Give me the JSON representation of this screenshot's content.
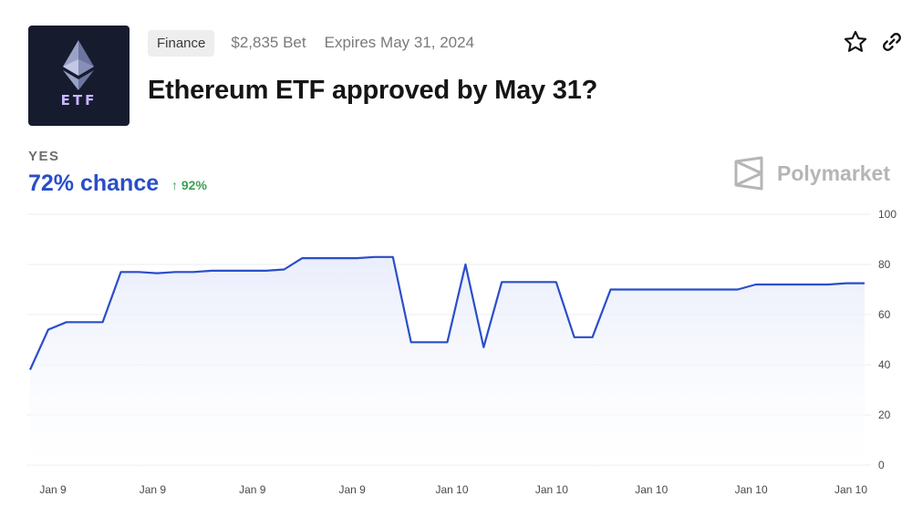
{
  "market": {
    "category": "Finance",
    "volume": "$2,835 Bet",
    "expires": "Expires May 31, 2024",
    "title": "Ethereum ETF approved by May 31?",
    "thumb_label": "ETF"
  },
  "outcome": {
    "label": "YES",
    "chance": "72% chance",
    "change": "↑ 92%"
  },
  "brand": {
    "name": "Polymarket"
  },
  "icons": {
    "favorite": "star-icon",
    "share": "link-icon",
    "brand": "polymarket-logo-icon",
    "thumb": "ethereum-diamond-icon"
  },
  "colors": {
    "line": "#2a4ec9",
    "fill_top": "#e8ecfb",
    "positive": "#3aa155"
  },
  "chart_data": {
    "type": "line",
    "title": "",
    "xlabel": "",
    "ylabel": "",
    "ylim": [
      0,
      100
    ],
    "yticks": [
      "100",
      "80",
      "60",
      "40",
      "20",
      "0"
    ],
    "xtick_labels": [
      "Jan 9",
      "Jan 9",
      "Jan 9",
      "Jan 9",
      "Jan 10",
      "Jan 10",
      "Jan 10",
      "Jan 10",
      "Jan 10"
    ],
    "grid": true,
    "series": [
      {
        "values": [
          38,
          54,
          57,
          57,
          57,
          77,
          77,
          76.5,
          77,
          77,
          77.5,
          77.5,
          77.5,
          77.5,
          78,
          82.5,
          82.5,
          82.5,
          82.5,
          83,
          83,
          49,
          49,
          49,
          80,
          47,
          73,
          73,
          73,
          73,
          51,
          51,
          70,
          70,
          70,
          70,
          70,
          70,
          70,
          70,
          72,
          72,
          72,
          72,
          72,
          72.5,
          72.5
        ]
      }
    ]
  }
}
